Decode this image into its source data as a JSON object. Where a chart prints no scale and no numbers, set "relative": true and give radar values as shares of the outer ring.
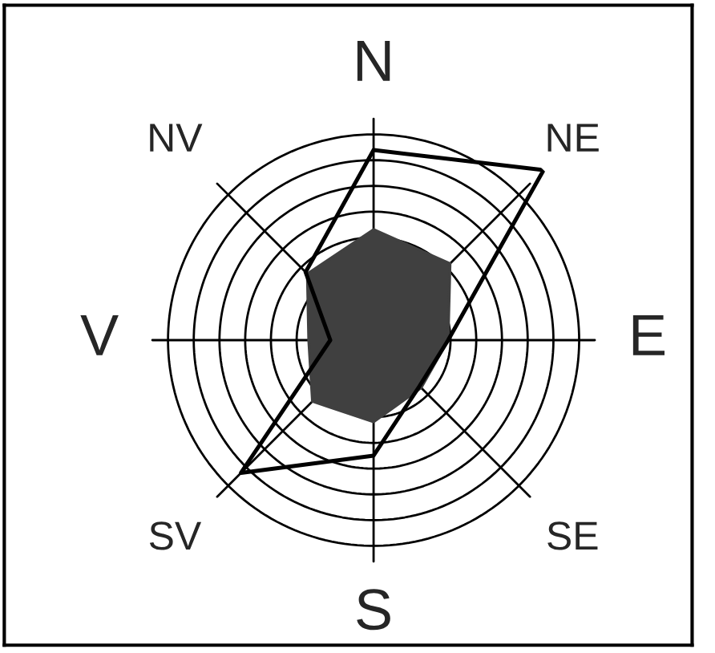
{
  "chart_data": {
    "type": "radar",
    "relative": true,
    "grid": true,
    "legend": false,
    "marker": "none",
    "line_style": "solid",
    "categories": [
      "N",
      "NE",
      "E",
      "SE",
      "S",
      "SV",
      "V",
      "NV"
    ],
    "series": [
      {
        "color": "#000000",
        "values": [
          0.79,
          1,
          0.31,
          0.27,
          0.48,
          0.78,
          0.18,
          0.4
        ]
      },
      {
        "type": "area",
        "color": "#404040",
        "values": [
          0.46,
          0.45,
          0.31,
          0.28,
          0.34,
          0.36,
          0.27,
          0.39
        ]
      }
    ]
  }
}
